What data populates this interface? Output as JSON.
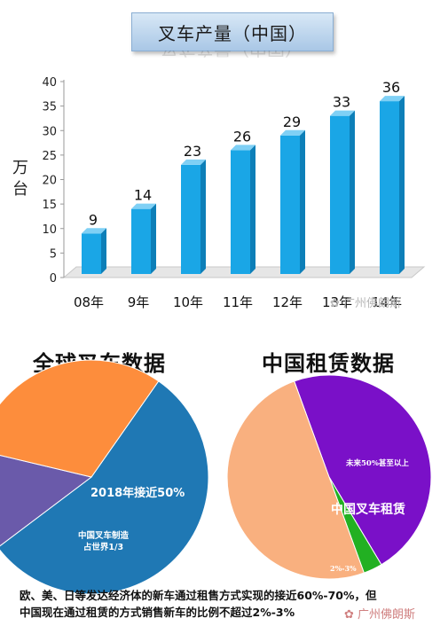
{
  "chart_data": [
    {
      "type": "bar",
      "title": "叉车产量（中国）",
      "ylabel": "万台",
      "categories": [
        "08年",
        "9年",
        "10年",
        "11年",
        "12年",
        "13年",
        "14年"
      ],
      "values": [
        9,
        14,
        23,
        26,
        29,
        33,
        36
      ],
      "ylim": [
        0,
        40
      ],
      "yticks": [
        0,
        5,
        10,
        15,
        20,
        25,
        30,
        35,
        40
      ],
      "bar_color": "#1aa6e6"
    },
    {
      "type": "pie",
      "title": "全球叉车数据",
      "slices": [
        {
          "label": "",
          "value": 55,
          "color": "#1f78b4"
        },
        {
          "label": "2018年接近50%",
          "value": 14,
          "color": "#6a5aaa"
        },
        {
          "label": "中国叉车制造\n占世界1/3",
          "value": 31,
          "color": "#fd8d3c"
        }
      ]
    },
    {
      "type": "pie",
      "title": "中国租赁数据",
      "slices": [
        {
          "label": "未来50%甚至以上",
          "value": 47,
          "color": "#7a10c8"
        },
        {
          "label": "2%-3%",
          "value": 3,
          "color": "#22b022"
        },
        {
          "label": "",
          "value": 50,
          "color": "#f9b07f"
        }
      ],
      "center_label": "中国叉车租赁"
    }
  ],
  "watermark": "广州佛朗斯",
  "footer": {
    "line1": "欧、美、日等发达经济体的新车通过租售方式实现的接近60%-70%，但",
    "line2": "中国现在通过租赁的方式销售新车的比例不超过2%-3%"
  }
}
